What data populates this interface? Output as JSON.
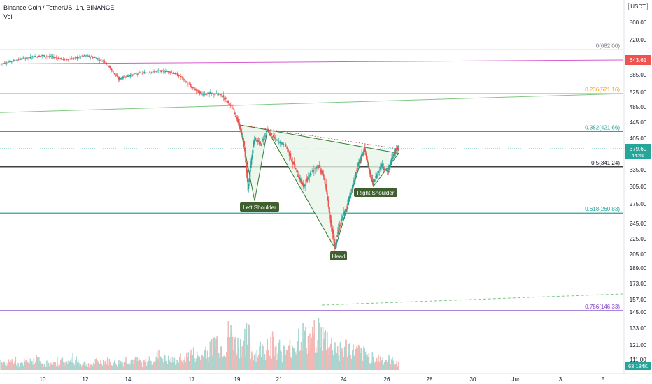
{
  "header": {
    "title": "Binance Coin / TetherUS, 1h, BINANCE",
    "volume_label": "Vol",
    "currency": "USDT"
  },
  "colors": {
    "up_candle": "#26a69a",
    "down_candle": "#ef5350",
    "fib_0": "#787b86",
    "fib_0236": "#f5a623",
    "fib_0382": "#26a69a",
    "fib_05": "#000000",
    "fib_0618": "#26a69a",
    "fib_0786": "#7b3fc6",
    "magenta_line": "#d65bd0",
    "green_trend": "#81c784",
    "hs_fill": "#e8f5e9",
    "hs_stroke": "#2e7d32",
    "label_bg": "#3f5f2f"
  },
  "chart_data": {
    "type": "candlestick",
    "title": "Binance Coin / TetherUS, 1h, BINANCE",
    "price_axis_ticks": [
      800.0,
      720.0,
      643.61,
      585.0,
      525.0,
      485.0,
      445.0,
      405.0,
      379.69,
      335.0,
      305.0,
      275.0,
      245.0,
      225.0,
      205.0,
      189.0,
      173.0,
      157.0,
      145.0,
      133.0,
      121.0,
      111.0
    ],
    "time_axis_ticks": [
      "10",
      "12",
      "14",
      "17",
      "19",
      "21",
      "24",
      "26",
      "28",
      "30",
      "Jun",
      "3",
      "5"
    ],
    "current_price": "379.69",
    "countdown": "44:46",
    "marked_price": "643.61",
    "current_volume": "63.184K",
    "fib_levels": [
      {
        "ratio": "0",
        "price": 682.0,
        "label": "0(682.00)"
      },
      {
        "ratio": "0.236",
        "price": 521.16,
        "label": "0.236(521.16)"
      },
      {
        "ratio": "0.382",
        "price": 421.66,
        "label": "0.382(421.66)"
      },
      {
        "ratio": "0.5",
        "price": 341.24,
        "label": "0.5(341.24)"
      },
      {
        "ratio": "0.618",
        "price": 260.83,
        "label": "0.618(260.83)"
      },
      {
        "ratio": "0.786",
        "price": 146.33,
        "label": "0.786(146.33)"
      }
    ],
    "pattern": {
      "type": "head-and-shoulders",
      "labels": [
        "Left Shoulder",
        "Head",
        "Right Shoulder"
      ],
      "points": [
        {
          "day": 19.3,
          "price": 438
        },
        {
          "day": 20.0,
          "price": 280
        },
        {
          "day": 20.6,
          "price": 425
        },
        {
          "day": 23.8,
          "price": 212
        },
        {
          "day": 25.2,
          "price": 382
        },
        {
          "day": 25.6,
          "price": 305
        },
        {
          "day": 26.8,
          "price": 370
        }
      ]
    },
    "price_path": [
      [
        8.0,
        628
      ],
      [
        8.5,
        638
      ],
      [
        9.0,
        648
      ],
      [
        9.5,
        655
      ],
      [
        10.0,
        660
      ],
      [
        10.5,
        655
      ],
      [
        11.0,
        645
      ],
      [
        11.5,
        650
      ],
      [
        12.0,
        660
      ],
      [
        12.5,
        652
      ],
      [
        13.0,
        635
      ],
      [
        13.3,
        600
      ],
      [
        13.6,
        570
      ],
      [
        14.0,
        580
      ],
      [
        14.5,
        590
      ],
      [
        15.0,
        595
      ],
      [
        15.5,
        600
      ],
      [
        16.0,
        598
      ],
      [
        16.5,
        580
      ],
      [
        17.0,
        545
      ],
      [
        17.5,
        520
      ],
      [
        18.0,
        522
      ],
      [
        18.5,
        515
      ],
      [
        19.0,
        480
      ],
      [
        19.3,
        435
      ],
      [
        19.5,
        395
      ],
      [
        19.7,
        300
      ],
      [
        20.0,
        405
      ],
      [
        20.3,
        390
      ],
      [
        20.6,
        425
      ],
      [
        21.0,
        402
      ],
      [
        21.5,
        385
      ],
      [
        22.0,
        330
      ],
      [
        22.3,
        305
      ],
      [
        22.6,
        325
      ],
      [
        23.0,
        345
      ],
      [
        23.3,
        320
      ],
      [
        23.6,
        250
      ],
      [
        23.8,
        215
      ],
      [
        24.0,
        240
      ],
      [
        24.3,
        265
      ],
      [
        24.6,
        300
      ],
      [
        24.9,
        345
      ],
      [
        25.2,
        380
      ],
      [
        25.4,
        335
      ],
      [
        25.6,
        310
      ],
      [
        26.0,
        345
      ],
      [
        26.3,
        330
      ],
      [
        26.5,
        360
      ],
      [
        26.7,
        382
      ],
      [
        26.8,
        379.69
      ]
    ],
    "volume": [
      6,
      8,
      5,
      7,
      9,
      6,
      5,
      8,
      7,
      10,
      6,
      5,
      7,
      8,
      6,
      7,
      9,
      8,
      7,
      10,
      12,
      9,
      8,
      11,
      14,
      12,
      18,
      25,
      20,
      30,
      22,
      28,
      15,
      18,
      24,
      20,
      16,
      22,
      30,
      26,
      35,
      28,
      22,
      18,
      20,
      16,
      14,
      12,
      10,
      9,
      8
    ]
  }
}
